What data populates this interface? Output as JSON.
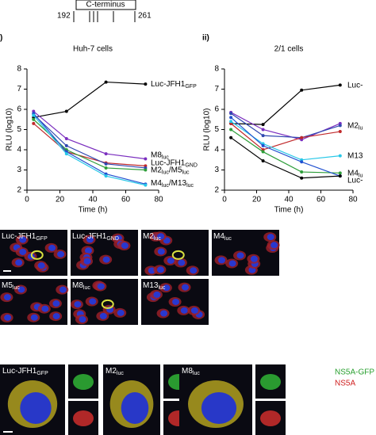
{
  "header": {
    "box": "C-terminus",
    "start": "192",
    "end": "261"
  },
  "chart_data": [
    {
      "type": "line",
      "panel": ")",
      "title": "Huh-7 cells",
      "xlabel": "Time (h)",
      "ylabel": "RLU (log10)",
      "x": [
        4,
        24,
        48,
        72
      ],
      "xlim": [
        0,
        80
      ],
      "xticks": [
        0,
        20,
        40,
        60,
        80
      ],
      "ylim": [
        2,
        8
      ],
      "yticks": [
        2,
        3,
        4,
        5,
        6,
        7,
        8
      ],
      "series": [
        {
          "color": "#000000",
          "values": [
            5.6,
            5.9,
            7.35,
            7.25
          ]
        },
        {
          "color": "#7b2fbf",
          "values": [
            5.9,
            4.55,
            3.8,
            3.55
          ]
        },
        {
          "color": "#c0282a",
          "values": [
            5.3,
            3.9,
            3.35,
            3.2
          ]
        },
        {
          "color": "#3048b0",
          "values": [
            5.75,
            4.2,
            3.3,
            3.1
          ]
        },
        {
          "color": "#2e9e3a",
          "values": [
            5.5,
            4.0,
            3.1,
            3.0
          ]
        },
        {
          "color": "#2050d0",
          "values": [
            5.8,
            3.9,
            2.8,
            2.3
          ]
        },
        {
          "color": "#28c8e8",
          "values": [
            5.7,
            3.8,
            2.7,
            2.25
          ]
        }
      ],
      "annotations": [
        {
          "text": "Luc-JFH1",
          "sub": "GFP"
        },
        {
          "text": "M8",
          "sub": "luc"
        },
        {
          "text": "Luc-JFH1",
          "sub": "GND"
        },
        {
          "text": "M2",
          "sub": "luc",
          "text2": "/M5",
          "sub2": "luc"
        },
        {
          "text": "M4",
          "sub": "luc",
          "text2": "/M13",
          "sub2": "luc"
        }
      ]
    },
    {
      "type": "line",
      "panel": "ii)",
      "title": "2/1 cells",
      "xlabel": "Time (h)",
      "ylabel": "RLU (log10)",
      "x": [
        4,
        24,
        48,
        72
      ],
      "xlim": [
        0,
        80
      ],
      "xticks": [
        0,
        20,
        40,
        60,
        80
      ],
      "ylim": [
        2,
        8
      ],
      "yticks": [
        2,
        3,
        4,
        5,
        6,
        7,
        8
      ],
      "series": [
        {
          "color": "#000000",
          "values": [
            5.3,
            5.25,
            6.95,
            7.2
          ]
        },
        {
          "color": "#7b2fbf",
          "values": [
            5.85,
            5.0,
            4.5,
            5.3
          ]
        },
        {
          "color": "#3048b0",
          "values": [
            5.8,
            4.7,
            4.6,
            5.2
          ]
        },
        {
          "color": "#c0282a",
          "values": [
            5.3,
            4.0,
            4.6,
            4.9
          ]
        },
        {
          "color": "#28c8e8",
          "values": [
            5.4,
            4.3,
            3.5,
            3.7
          ]
        },
        {
          "color": "#2e9e3a",
          "values": [
            5.0,
            3.9,
            2.9,
            2.85
          ]
        },
        {
          "color": "#2050d0",
          "values": [
            5.6,
            4.2,
            3.4,
            2.7
          ]
        },
        {
          "color": "#000000",
          "values": [
            4.6,
            3.45,
            2.6,
            2.7
          ]
        }
      ],
      "annotations": [
        {
          "text": "Luc-"
        },
        {
          "text": "M2",
          "sub": "lu"
        },
        {
          "text": "M13"
        },
        {
          "text": "M4",
          "sub": "lu"
        },
        {
          "text": "Luc-"
        }
      ]
    }
  ],
  "micrographs": [
    {
      "text": "Luc-JFH1",
      "sub": "GFP"
    },
    {
      "text": "Luc-JFH1",
      "sub": "GND"
    },
    {
      "text": "M2",
      "sub": "luc"
    },
    {
      "text": "M4",
      "sub": "luc"
    },
    {
      "text": "M5",
      "sub": "luc"
    },
    {
      "text": "M8",
      "sub": "luc"
    },
    {
      "text": "M13",
      "sub": "luc"
    }
  ],
  "closeups": [
    {
      "text": "Luc-JFH1",
      "sub": "GFP"
    },
    {
      "text": "M2",
      "sub": "luc"
    },
    {
      "text": "M8",
      "sub": "luc"
    }
  ],
  "legend": {
    "green": "NS5A-GFP",
    "red": "NS5A"
  }
}
